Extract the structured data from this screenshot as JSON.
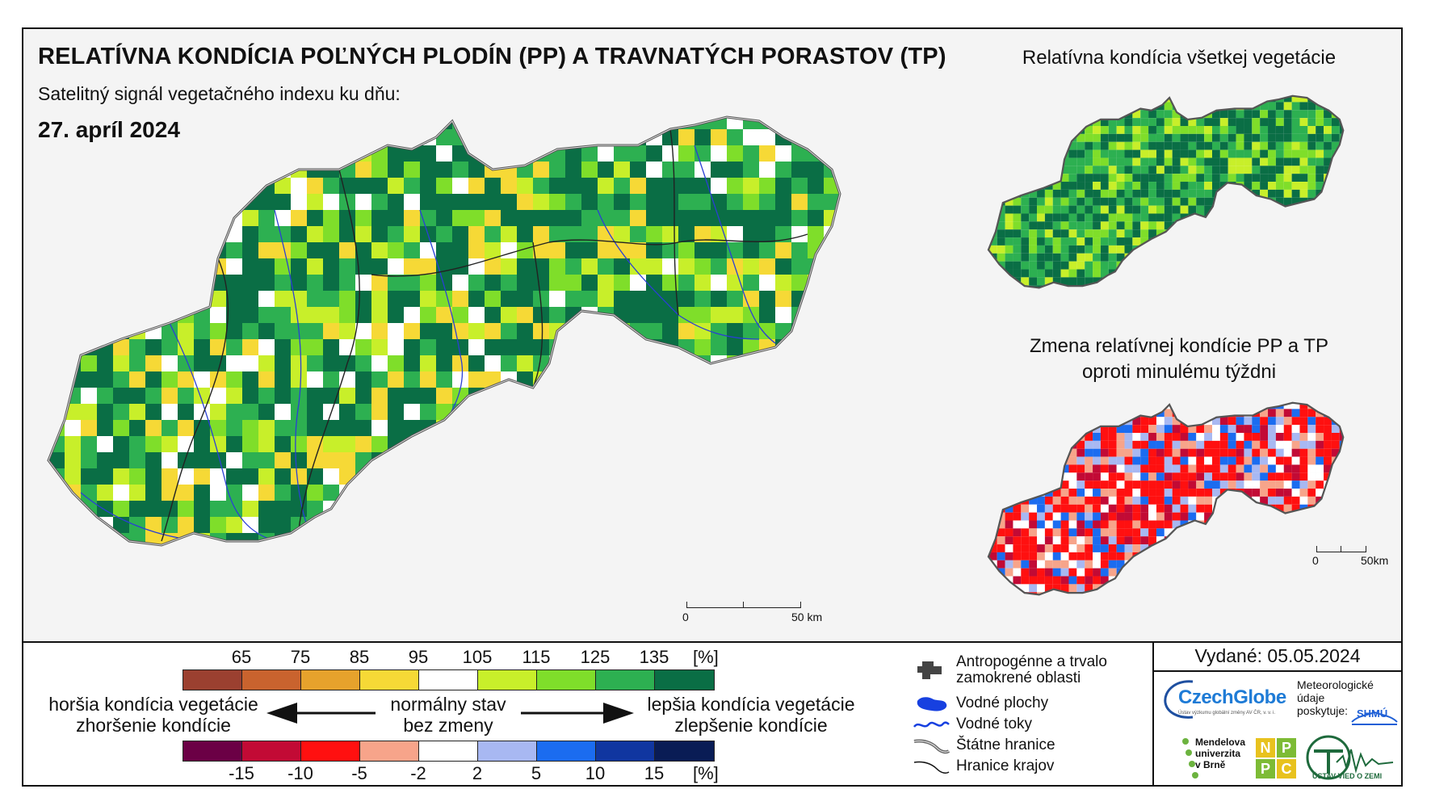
{
  "header": {
    "title": "RELATÍVNA KONDÍCIA POĽNÝCH PLODÍN (PP) A TRAVNATÝCH PORASTOV (TP)",
    "subtitle": "Satelitný signál vegetačného indexu ku dňu:",
    "date": "27. apríl 2024"
  },
  "side_maps": {
    "title_top": "Relatívna kondícia všetkej vegetácie",
    "title_bottom_line1": "Zmena relatívnej kondície PP a TP",
    "title_bottom_line2": "oproti minulému týždni"
  },
  "scale_main": {
    "start": "0",
    "end": "50 km"
  },
  "scale_small": {
    "start": "0",
    "end": "50km"
  },
  "legend": {
    "top_ticks": [
      "65",
      "75",
      "85",
      "95",
      "105",
      "115",
      "125",
      "135"
    ],
    "top_unit": "[%]",
    "top_colors": [
      "#9b4030",
      "#c9632e",
      "#e6a22c",
      "#f6d936",
      "#ffffff",
      "#c8ef2a",
      "#7fde2a",
      "#2db051",
      "#0a6e45"
    ],
    "bottom_ticks": [
      "-15",
      "-10",
      "-5",
      "-2",
      "2",
      "5",
      "10",
      "15"
    ],
    "bottom_unit": "[%]",
    "bottom_colors": [
      "#6b0045",
      "#c20a35",
      "#ff1010",
      "#f7a48a",
      "#ffffff",
      "#a8b8f2",
      "#1b6cf0",
      "#1036a0",
      "#091c55"
    ],
    "worse_line1": "horšia kondícia vegetácie",
    "worse_line2": "zhoršenie kondície",
    "normal_line1": "normálny stav",
    "normal_line2": "bez zmeny",
    "better_line1": "lepšia kondícia vegetácie",
    "better_line2": "zlepšenie kondície"
  },
  "symbols": [
    {
      "id": "antro",
      "label1": "Antropogénne a trvalo",
      "label2": "zamokrené oblasti"
    },
    {
      "id": "water-bodies",
      "label1": "Vodné plochy"
    },
    {
      "id": "rivers",
      "label1": "Vodné toky"
    },
    {
      "id": "state-border",
      "label1": "Štátne hranice"
    },
    {
      "id": "region-border",
      "label1": "Hranice krajov"
    }
  ],
  "issued": "Vydané: 05.05.2024",
  "logos": {
    "czechglobe": "CzechGlobe",
    "czechglobe_sub": "Ústav výzkumu globální změny AV ČR, v. v. i.",
    "meteo_line1": "Meteorologické",
    "meteo_line2": "údaje",
    "meteo_line3": "poskytuje:",
    "shmu": "SHMÚ",
    "mendel_line1": "Mendelova",
    "mendel_line2": "univerzita",
    "mendel_line3": "v Brně",
    "nppc_letters": [
      "N",
      "P",
      "P",
      "C"
    ],
    "uvz": "ÚSTAV VIED O ZEMI"
  },
  "map_palettes": {
    "main": [
      "#0a6e45",
      "#0a6e45",
      "#0a6e45",
      "#2db051",
      "#2db051",
      "#7fde2a",
      "#c8ef2a",
      "#ffffff",
      "#f6d936"
    ],
    "all_vegetation": [
      "#0a6e45",
      "#0a6e45",
      "#0a6e45",
      "#2db051",
      "#2db051",
      "#7fde2a",
      "#c8ef2a"
    ],
    "change": [
      "#ff1010",
      "#ff1010",
      "#ff1010",
      "#c20a35",
      "#f7a48a",
      "#ffffff",
      "#a8b8f2",
      "#1b6cf0"
    ]
  }
}
